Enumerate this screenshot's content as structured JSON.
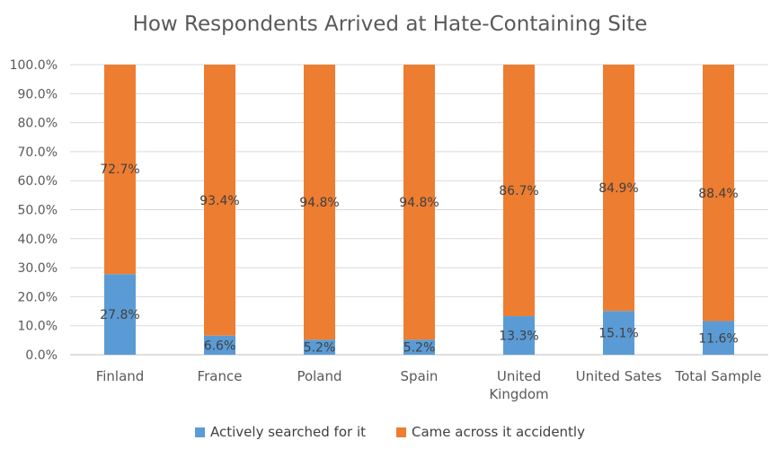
{
  "chart_data": {
    "type": "bar",
    "stacked": true,
    "percent": true,
    "title": "How Respondents Arrived at Hate-Containing Site",
    "categories": [
      "Finland",
      "France",
      "Poland",
      "Spain",
      "United Kingdom",
      "United Sates",
      "Total Sample"
    ],
    "series": [
      {
        "name": "Actively searched for it",
        "color": "#5B9BD5",
        "values": [
          27.8,
          6.6,
          5.2,
          5.2,
          13.3,
          15.1,
          11.6
        ],
        "labels": [
          "27.8%",
          "6.6%",
          "5.2%",
          "5.2%",
          "13.3%",
          "15.1%",
          "11.6%"
        ]
      },
      {
        "name": "Came across it accidently",
        "color": "#ED7D31",
        "values": [
          72.7,
          93.4,
          94.8,
          94.8,
          86.7,
          84.9,
          88.4
        ],
        "labels": [
          "72.7%",
          "93.4%",
          "94.8%",
          "94.8%",
          "86.7%",
          "84.9%",
          "88.4%"
        ]
      }
    ],
    "ylim": [
      0,
      100
    ],
    "yticks": [
      "0.0%",
      "10.0%",
      "20.0%",
      "30.0%",
      "40.0%",
      "50.0%",
      "60.0%",
      "70.0%",
      "80.0%",
      "90.0%",
      "100.0%"
    ],
    "xlabel": "",
    "ylabel": "",
    "grid": true,
    "legend_position": "bottom"
  }
}
